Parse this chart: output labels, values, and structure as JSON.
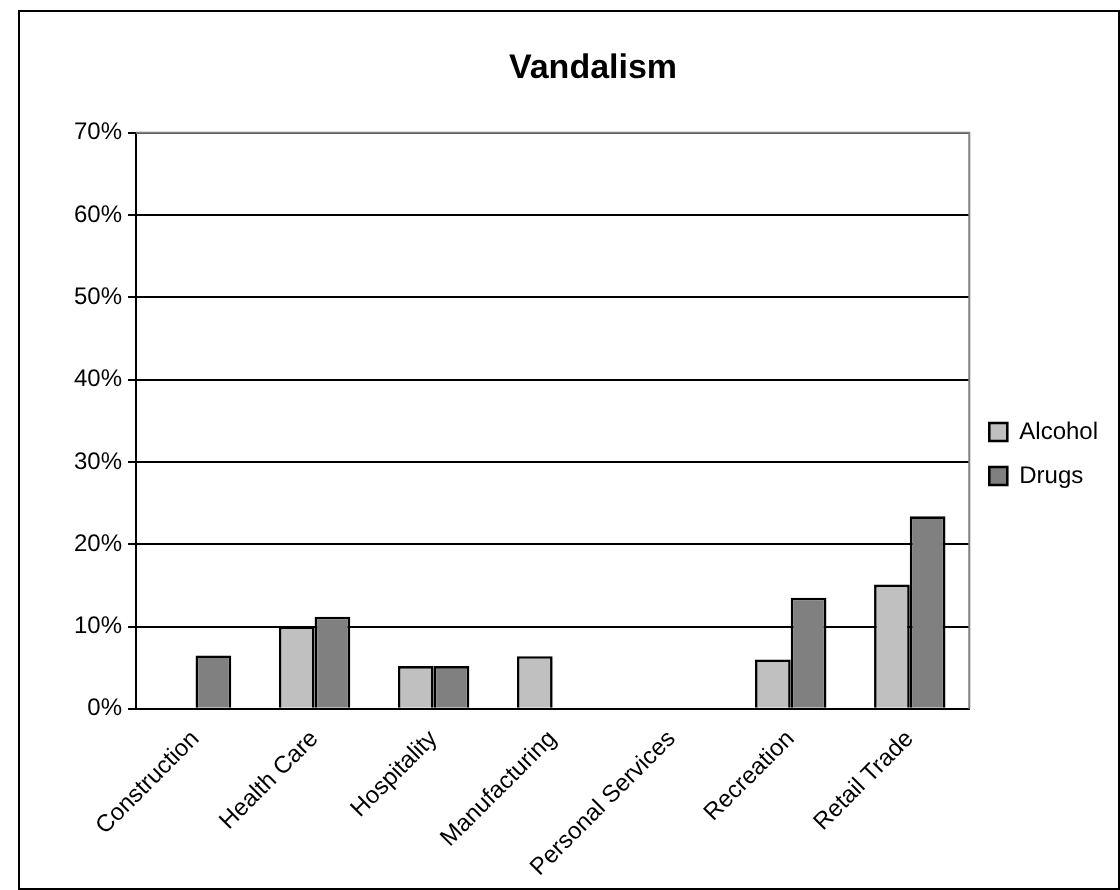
{
  "chart_data": {
    "type": "bar",
    "title": "Vandalism",
    "categories": [
      "Construction",
      "Health Care",
      "Hospitality",
      "Manufacturing",
      "Personal Services",
      "Recreation",
      "Retail Trade"
    ],
    "series": [
      {
        "name": "Alcohol",
        "color": "#c0c0c0",
        "values": [
          0,
          10,
          5.2,
          6.4,
          0,
          6.0,
          15.1
        ]
      },
      {
        "name": "Drugs",
        "color": "#808080",
        "values": [
          6.5,
          11.2,
          5.2,
          0,
          0,
          13.5,
          23.4
        ]
      }
    ],
    "ylim": [
      0,
      70
    ],
    "yticks": [
      {
        "value": 0,
        "label": "0%"
      },
      {
        "value": 10,
        "label": "10%"
      },
      {
        "value": 20,
        "label": "20%"
      },
      {
        "value": 30,
        "label": "30%"
      },
      {
        "value": 40,
        "label": "40%"
      },
      {
        "value": 50,
        "label": "50%"
      },
      {
        "value": 60,
        "label": "60%"
      },
      {
        "value": 70,
        "label": "70%"
      }
    ],
    "grid": "y",
    "legend": "right"
  }
}
